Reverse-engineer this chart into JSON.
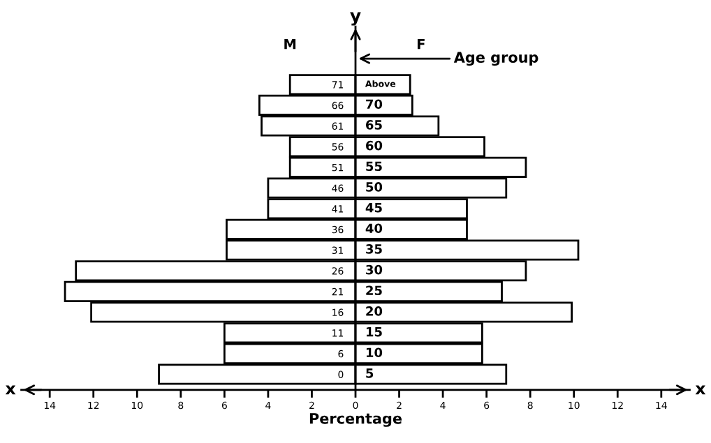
{
  "chart_data": {
    "type": "bar",
    "orientation": "horizontal",
    "stacked": true,
    "categories": [
      "71",
      "66",
      "61",
      "56",
      "51",
      "46",
      "41",
      "36",
      "31",
      "26",
      "21",
      "16",
      "11",
      "6",
      "0"
    ],
    "series": [
      {
        "name": "M",
        "color": "#ffffff",
        "values": [
          -3,
          -4.4,
          -4.3,
          -3,
          -3,
          -4,
          -4,
          -5.9,
          -5.9,
          -12.8,
          -13.3,
          -12.1,
          -6,
          -6,
          -9
        ]
      },
      {
        "name": "F",
        "color": "#ffffff",
        "values": [
          2.5,
          2.6,
          3.8,
          5.9,
          7.8,
          6.9,
          5.1,
          5.1,
          10.2,
          7.8,
          6.7,
          9.9,
          5.8,
          5.8,
          6.9
        ]
      }
    ],
    "xlim": [
      -15.3,
      15.3
    ],
    "xticks": [
      {
        "value": -14,
        "label": "14"
      },
      {
        "value": -12,
        "label": "12"
      },
      {
        "value": -10,
        "label": "10"
      },
      {
        "value": -8,
        "label": "8"
      },
      {
        "value": -6,
        "label": "6"
      },
      {
        "value": -4,
        "label": "4"
      },
      {
        "value": -2,
        "label": "2"
      },
      0,
      2,
      4,
      6,
      8,
      10,
      12,
      14
    ],
    "xlabel": "Percentage",
    "ylabel": "y",
    "annotations": [
      "Above",
      "70",
      "65",
      "60",
      "55",
      "50",
      "45",
      "40",
      "35",
      "30",
      "25",
      "20",
      "15",
      "10",
      "5",
      "Age group",
      "x",
      "x"
    ],
    "grid": false,
    "legend": false
  }
}
